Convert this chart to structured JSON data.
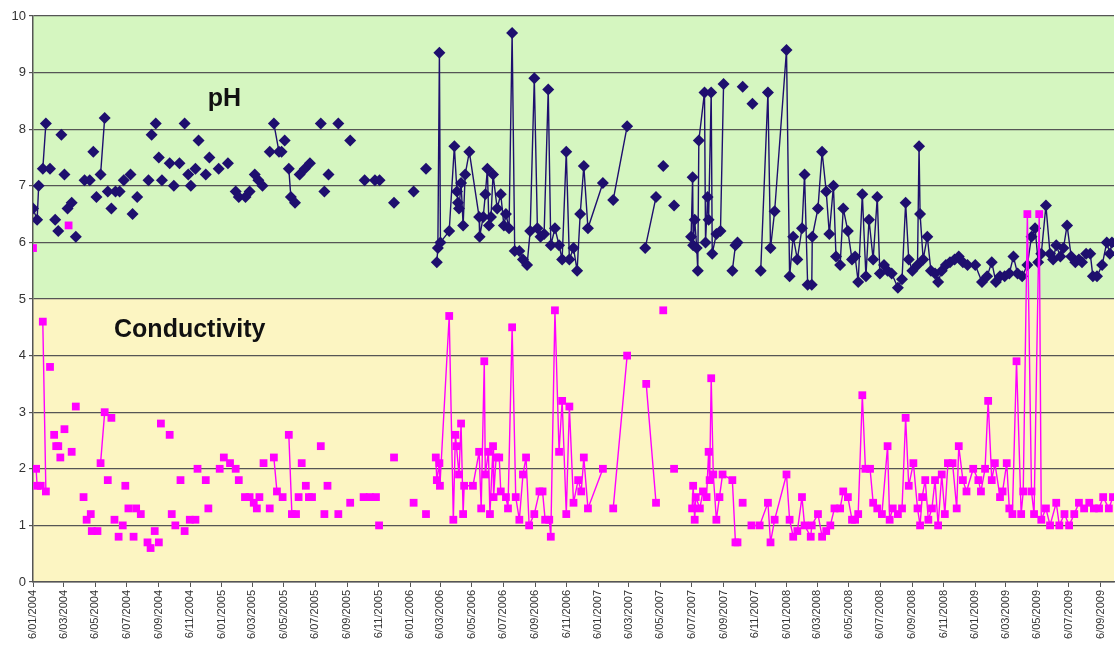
{
  "chart_data": {
    "type": "line",
    "xlim": [
      "2004-01-06",
      "2009-10-02"
    ],
    "xticks": [
      {
        "value": "2004-01-06",
        "label": "6/01/2004"
      },
      {
        "value": "2004-03-06",
        "label": "6/03/2004"
      },
      {
        "value": "2004-05-06",
        "label": "6/05/2004"
      },
      {
        "value": "2004-07-06",
        "label": "6/07/2004"
      },
      {
        "value": "2004-09-06",
        "label": "6/09/2004"
      },
      {
        "value": "2004-11-06",
        "label": "6/11/2004"
      },
      {
        "value": "2005-01-06",
        "label": "6/01/2005"
      },
      {
        "value": "2005-03-06",
        "label": "6/03/2005"
      },
      {
        "value": "2005-05-06",
        "label": "6/05/2005"
      },
      {
        "value": "2005-07-06",
        "label": "6/07/2005"
      },
      {
        "value": "2005-09-06",
        "label": "6/09/2005"
      },
      {
        "value": "2005-11-06",
        "label": "6/11/2005"
      },
      {
        "value": "2006-01-06",
        "label": "6/01/2006"
      },
      {
        "value": "2006-03-06",
        "label": "6/03/2006"
      },
      {
        "value": "2006-05-06",
        "label": "6/05/2006"
      },
      {
        "value": "2006-07-06",
        "label": "6/07/2006"
      },
      {
        "value": "2006-09-06",
        "label": "6/09/2006"
      },
      {
        "value": "2006-11-06",
        "label": "6/11/2006"
      },
      {
        "value": "2007-01-06",
        "label": "6/01/2007"
      },
      {
        "value": "2007-03-06",
        "label": "6/03/2007"
      },
      {
        "value": "2007-05-06",
        "label": "6/05/2007"
      },
      {
        "value": "2007-07-06",
        "label": "6/07/2007"
      },
      {
        "value": "2007-09-06",
        "label": "6/09/2007"
      },
      {
        "value": "2007-11-06",
        "label": "6/11/2007"
      },
      {
        "value": "2008-01-06",
        "label": "6/01/2008"
      },
      {
        "value": "2008-03-06",
        "label": "6/03/2008"
      },
      {
        "value": "2008-05-06",
        "label": "6/05/2008"
      },
      {
        "value": "2008-07-06",
        "label": "6/07/2008"
      },
      {
        "value": "2008-09-06",
        "label": "6/09/2008"
      },
      {
        "value": "2008-11-06",
        "label": "6/11/2008"
      },
      {
        "value": "2009-01-06",
        "label": "6/01/2009"
      },
      {
        "value": "2009-03-06",
        "label": "6/03/2009"
      },
      {
        "value": "2009-05-06",
        "label": "6/05/2009"
      },
      {
        "value": "2009-07-06",
        "label": "6/07/2009"
      },
      {
        "value": "2009-09-06",
        "label": "6/09/2009"
      }
    ],
    "ylim": [
      0,
      10
    ],
    "yticks": [
      0,
      1,
      2,
      3,
      4,
      5,
      6,
      7,
      8,
      9,
      10
    ],
    "grid": "y",
    "line_style": "solid",
    "bands": [
      {
        "axis": "y",
        "from": 5,
        "to": 10,
        "color": "#d5f6c0"
      },
      {
        "axis": "y",
        "from": 0,
        "to": 5,
        "color": "#fcf5c2"
      }
    ],
    "series": [
      {
        "name": "pH",
        "color": "#1e0f6e",
        "marker": "diamond",
        "x": [
          "2004-01-06",
          "2004-01-14",
          "2004-01-17",
          null,
          "2004-01-25",
          "2004-01-31",
          null,
          "2004-02-08",
          null,
          "2004-02-18",
          null,
          "2004-02-24",
          null,
          "2004-03-01",
          null,
          "2004-03-07",
          null,
          "2004-03-13",
          null,
          "2004-03-21",
          null,
          "2004-03-29",
          null,
          "2004-04-15",
          null,
          "2004-04-25",
          null,
          "2004-05-02",
          null,
          "2004-05-08",
          null,
          "2004-05-16",
          "2004-05-24",
          null,
          "2004-05-30",
          null,
          "2004-06-06",
          null,
          "2004-06-14",
          null,
          "2004-06-22",
          null,
          "2004-06-30",
          null,
          "2004-07-13",
          null,
          "2004-07-17",
          null,
          "2004-07-26",
          null,
          "2004-08-17",
          null,
          "2004-08-23",
          null,
          "2004-08-31",
          null,
          "2004-09-06",
          null,
          "2004-09-12",
          null,
          "2004-09-27",
          null,
          "2004-10-05",
          null,
          "2004-10-16",
          null,
          "2004-10-26",
          null,
          "2004-11-02",
          null,
          "2004-11-07",
          null,
          "2004-11-16",
          null,
          "2004-11-22",
          null,
          "2004-12-06",
          null,
          "2004-12-13",
          null,
          "2004-12-31",
          null,
          "2005-01-18",
          null,
          "2005-02-02",
          null,
          "2005-02-08",
          null,
          "2005-02-21",
          null,
          "2005-03-01",
          null,
          "2005-03-11",
          null,
          "2005-03-18",
          null,
          "2005-03-26",
          null,
          "2005-04-09",
          null,
          "2005-04-17",
          "2005-04-27",
          null,
          "2005-05-02",
          null,
          "2005-05-08",
          null,
          "2005-05-16",
          "2005-05-20",
          "2005-05-28",
          null,
          "2005-06-06",
          null,
          "2005-06-16",
          null,
          "2005-06-26",
          null,
          "2005-07-17",
          null,
          "2005-07-24",
          null,
          "2005-08-01",
          null,
          "2005-08-20",
          null,
          "2005-09-12",
          null,
          "2005-10-10",
          null,
          "2005-10-30",
          null,
          "2005-11-08",
          null,
          "2005-12-06",
          null,
          "2006-01-13",
          null,
          "2006-02-06",
          null,
          "2006-02-27",
          "2006-03-01",
          "2006-03-04",
          "2006-03-06",
          "2006-03-23",
          "2006-04-02",
          "2006-04-07",
          "2006-04-09",
          "2006-04-11",
          "2006-04-15",
          "2006-04-19",
          "2006-04-23",
          "2006-05-01",
          "2006-05-20",
          "2006-05-21",
          "2006-05-28",
          "2006-06-01",
          "2006-06-05",
          "2006-06-08",
          "2006-06-12",
          "2006-06-16",
          "2006-06-24",
          "2006-07-01",
          "2006-07-07",
          "2006-07-11",
          "2006-07-17",
          "2006-07-23",
          "2006-07-28",
          "2006-08-06",
          "2006-08-13",
          "2006-08-21",
          "2006-08-27",
          "2006-09-04",
          "2006-09-10",
          "2006-09-16",
          "2006-09-23",
          "2006-10-01",
          "2006-10-06",
          "2006-10-14",
          "2006-10-22",
          "2006-10-28",
          "2006-11-05",
          "2006-11-11",
          "2006-11-19",
          "2006-11-26",
          "2006-12-02",
          "2006-12-09",
          "2006-12-17",
          "2007-01-15",
          null,
          "2007-02-04",
          "2007-03-03",
          null,
          "2007-04-07",
          "2007-04-28",
          null,
          "2007-05-12",
          null,
          "2007-06-02",
          null,
          "2007-07-05",
          "2007-07-08",
          "2007-07-09",
          "2007-07-12",
          "2007-07-16",
          "2007-07-18",
          "2007-07-20",
          "2007-07-31",
          "2007-08-02",
          "2007-08-06",
          "2007-08-08",
          "2007-08-13",
          "2007-08-15",
          "2007-08-23",
          "2007-08-31",
          "2007-09-06",
          null,
          "2007-09-23",
          "2007-09-29",
          "2007-10-03",
          null,
          "2007-10-13",
          null,
          "2007-11-01",
          null,
          "2007-11-17",
          "2007-12-01",
          "2007-12-06",
          "2007-12-14",
          "2008-01-06",
          "2008-01-12",
          "2008-01-19",
          "2008-01-27",
          "2008-02-05",
          "2008-02-10",
          "2008-02-16",
          "2008-02-24",
          "2008-02-25",
          "2008-03-07",
          "2008-03-15",
          "2008-03-23",
          "2008-03-29",
          "2008-04-06",
          "2008-04-11",
          "2008-04-19",
          "2008-04-25",
          "2008-05-04",
          "2008-05-12",
          "2008-05-18",
          "2008-05-24",
          "2008-06-01",
          "2008-06-08",
          "2008-06-14",
          "2008-06-22",
          "2008-06-30",
          "2008-07-05",
          "2008-07-13",
          "2008-07-20",
          "2008-07-28",
          "2008-08-09",
          "2008-08-17",
          "2008-08-24",
          "2008-08-30",
          "2008-09-06",
          "2008-09-16",
          "2008-09-19",
          "2008-09-21",
          "2008-09-27",
          "2008-10-05",
          "2008-10-12",
          "2008-10-20",
          "2008-10-26",
          "2008-11-02",
          "2008-11-10",
          "2008-11-18",
          "2008-11-27",
          "2008-12-05",
          "2008-12-13",
          "2008-12-22",
          "2009-01-06",
          "2009-01-19",
          "2009-01-29",
          "2009-02-07",
          "2009-02-15",
          "2009-02-23",
          "2009-03-04",
          "2009-03-13",
          "2009-03-21",
          "2009-03-29",
          "2009-04-07",
          "2009-04-17",
          "2009-04-25",
          "2009-05-02",
          "2009-05-08",
          "2009-05-14",
          "2009-05-23",
          "2009-05-31",
          "2009-06-06",
          "2009-06-12",
          "2009-06-20",
          "2009-06-26",
          "2009-07-03",
          "2009-07-11",
          "2009-07-19",
          "2009-07-26",
          "2009-08-01",
          "2009-08-09",
          "2009-08-17",
          "2009-08-22",
          "2009-08-30",
          "2009-09-09",
          "2009-09-18",
          "2009-09-24",
          "2009-09-28"
        ],
        "values": [
          6.6,
          6.4,
          7.0,
          null,
          7.3,
          8.1,
          null,
          7.3,
          null,
          6.4,
          null,
          6.2,
          null,
          7.9,
          null,
          7.2,
          null,
          6.6,
          null,
          6.7,
          null,
          6.1,
          null,
          7.1,
          null,
          7.1,
          null,
          7.6,
          null,
          6.8,
          null,
          7.2,
          8.2,
          null,
          6.9,
          null,
          6.6,
          null,
          6.9,
          null,
          6.9,
          null,
          7.1,
          null,
          7.2,
          null,
          6.5,
          null,
          6.8,
          null,
          7.1,
          null,
          7.9,
          null,
          8.1,
          null,
          7.5,
          null,
          7.1,
          null,
          7.4,
          null,
          7.0,
          null,
          7.4,
          null,
          8.1,
          null,
          7.2,
          null,
          7.0,
          null,
          7.3,
          null,
          7.8,
          null,
          7.2,
          null,
          7.5,
          null,
          7.3,
          null,
          7.4,
          null,
          6.9,
          null,
          6.8,
          null,
          6.8,
          null,
          6.9,
          null,
          7.2,
          null,
          7.1,
          null,
          7.0,
          null,
          7.6,
          null,
          8.1,
          7.6,
          null,
          7.6,
          null,
          7.8,
          null,
          7.3,
          6.8,
          6.7,
          null,
          7.2,
          null,
          7.3,
          null,
          7.4,
          null,
          8.1,
          null,
          6.9,
          null,
          7.2,
          null,
          8.1,
          null,
          7.8,
          null,
          7.1,
          null,
          7.1,
          null,
          7.1,
          null,
          6.7,
          null,
          6.9,
          null,
          7.3,
          null,
          5.65,
          5.9,
          9.35,
          6.0,
          6.2,
          7.7,
          6.9,
          6.7,
          6.6,
          7.05,
          6.3,
          7.2,
          7.6,
          6.45,
          6.1,
          6.45,
          6.85,
          7.3,
          6.3,
          6.45,
          7.2,
          6.6,
          6.85,
          6.3,
          6.5,
          6.25,
          9.7,
          5.85,
          5.85,
          5.7,
          5.6,
          6.2,
          8.9,
          6.25,
          6.1,
          6.15,
          8.7,
          5.95,
          6.25,
          5.95,
          5.7,
          7.6,
          5.7,
          5.9,
          5.5,
          6.5,
          7.35,
          6.25,
          7.05,
          null,
          6.75,
          8.05,
          null,
          5.9,
          6.8,
          null,
          7.35,
          null,
          6.65,
          null,
          6.1,
          7.15,
          5.95,
          6.4,
          5.9,
          5.5,
          7.8,
          8.65,
          6.0,
          6.8,
          6.4,
          8.65,
          5.8,
          6.15,
          6.2,
          8.8,
          null,
          5.5,
          5.95,
          6.0,
          null,
          8.75,
          null,
          8.45,
          null,
          5.5,
          8.65,
          5.9,
          6.55,
          9.4,
          5.4,
          6.1,
          5.7,
          6.25,
          7.2,
          5.25,
          5.25,
          6.1,
          6.6,
          7.6,
          6.9,
          6.15,
          7.0,
          5.75,
          5.6,
          6.6,
          6.2,
          5.7,
          5.75,
          5.3,
          6.85,
          5.4,
          6.4,
          5.7,
          6.8,
          5.45,
          5.6,
          5.5,
          5.45,
          5.2,
          5.35,
          6.7,
          5.7,
          5.5,
          5.6,
          7.7,
          6.5,
          5.7,
          6.1,
          5.5,
          5.45,
          5.3,
          5.5,
          5.6,
          5.65,
          5.7,
          5.75,
          5.65,
          5.6,
          5.6,
          5.3,
          5.4,
          5.65,
          5.3,
          5.4,
          5.4,
          5.45,
          5.75,
          5.45,
          5.4,
          5.6,
          6.1,
          6.25,
          5.65,
          5.8,
          6.65,
          5.8,
          5.7,
          5.95,
          5.75,
          5.9,
          6.3,
          5.75,
          5.65,
          5.7,
          5.65,
          5.8,
          5.8,
          5.4,
          5.4,
          5.6,
          6.0,
          5.8,
          6.0
        ]
      },
      {
        "name": "Conductivity",
        "color": "#ff00ff",
        "marker": "square",
        "x": [
          "2004-01-06",
          null,
          "2004-01-12",
          "2004-01-14",
          null,
          "2004-01-21",
          null,
          "2004-01-25",
          "2004-01-31",
          null,
          "2004-02-08",
          null,
          "2004-02-16",
          null,
          "2004-02-20",
          null,
          "2004-02-24",
          null,
          "2004-02-28",
          null,
          "2004-03-07",
          null,
          "2004-03-15",
          null,
          "2004-03-21",
          null,
          "2004-03-29",
          null,
          "2004-04-13",
          null,
          "2004-04-19",
          null,
          "2004-04-27",
          null,
          "2004-04-29",
          null,
          "2004-05-10",
          null,
          "2004-05-16",
          "2004-05-24",
          null,
          "2004-05-30",
          null,
          "2004-06-06",
          null,
          "2004-06-12",
          null,
          "2004-06-20",
          null,
          "2004-06-28",
          null,
          "2004-07-03",
          null,
          "2004-07-09",
          null,
          "2004-07-19",
          null,
          "2004-07-24",
          null,
          "2004-08-02",
          null,
          "2004-08-15",
          null,
          "2004-08-21",
          null,
          "2004-08-29",
          null,
          "2004-09-06",
          null,
          "2004-09-10",
          null,
          "2004-09-27",
          null,
          "2004-10-01",
          null,
          "2004-10-08",
          null,
          "2004-10-18",
          null,
          "2004-10-26",
          null,
          "2004-11-05",
          null,
          "2004-11-16",
          null,
          "2004-11-20",
          null,
          "2004-12-06",
          null,
          "2004-12-11",
          null,
          "2005-01-02",
          null,
          "2005-01-10",
          null,
          "2005-01-22",
          null,
          "2005-02-02",
          null,
          "2005-02-08",
          null,
          "2005-02-20",
          null,
          "2005-03-01",
          null,
          "2005-03-09",
          null,
          "2005-03-15",
          null,
          "2005-03-20",
          null,
          "2005-03-28",
          null,
          "2005-04-09",
          null,
          "2005-04-17",
          "2005-04-23",
          null,
          "2005-05-04",
          null,
          "2005-05-16",
          "2005-05-22",
          null,
          "2005-05-30",
          null,
          "2005-06-04",
          null,
          "2005-06-10",
          null,
          "2005-06-18",
          null,
          "2005-06-24",
          null,
          "2005-06-30",
          null,
          "2005-07-17",
          null,
          "2005-07-24",
          null,
          "2005-07-30",
          null,
          "2005-08-20",
          null,
          "2005-09-12",
          null,
          "2005-10-08",
          null,
          "2005-10-20",
          null,
          "2005-11-01",
          null,
          "2005-11-07",
          null,
          "2005-12-06",
          null,
          "2006-01-13",
          null,
          "2006-02-06",
          null,
          "2006-02-25",
          "2006-02-27",
          "2006-03-04",
          "2006-03-05",
          "2006-03-23",
          "2006-03-31",
          "2006-04-04",
          "2006-04-06",
          "2006-04-11",
          "2006-04-15",
          "2006-04-19",
          "2006-04-21",
          "2006-05-08",
          "2006-05-20",
          "2006-05-24",
          "2006-05-30",
          "2006-06-01",
          "2006-06-07",
          "2006-06-10",
          "2006-06-16",
          "2006-06-17",
          "2006-06-22",
          "2006-06-28",
          "2006-07-01",
          "2006-07-11",
          "2006-07-15",
          "2006-07-23",
          "2006-07-30",
          "2006-08-06",
          "2006-08-13",
          "2006-08-19",
          "2006-08-25",
          "2006-09-04",
          "2006-09-14",
          "2006-09-20",
          "2006-09-25",
          "2006-10-03",
          "2006-10-06",
          "2006-10-14",
          "2006-10-22",
          "2006-10-28",
          "2006-11-05",
          "2006-11-11",
          "2006-11-19",
          "2006-11-28",
          "2006-12-04",
          "2006-12-09",
          "2006-12-17",
          "2007-01-15",
          null,
          "2007-02-04",
          "2007-03-03",
          null,
          "2007-04-09",
          "2007-04-28",
          null,
          "2007-05-12",
          null,
          "2007-06-02",
          null,
          "2007-07-07",
          "2007-07-09",
          "2007-07-12",
          "2007-07-14",
          "2007-07-22",
          "2007-07-28",
          "2007-08-04",
          "2007-08-08",
          "2007-08-10",
          "2007-08-13",
          "2007-08-17",
          "2007-08-23",
          "2007-08-29",
          "2007-09-04",
          "2007-09-23",
          "2007-09-29",
          "2007-10-03",
          null,
          "2007-10-13",
          null,
          "2007-10-30",
          "2007-11-15",
          "2007-12-01",
          "2007-12-06",
          "2007-12-14",
          "2008-01-06",
          "2008-01-12",
          "2008-01-19",
          "2008-01-27",
          "2008-02-05",
          "2008-02-10",
          "2008-02-22",
          "2008-02-24",
          "2008-03-07",
          "2008-03-15",
          "2008-03-23",
          "2008-03-31",
          "2008-04-08",
          "2008-04-19",
          "2008-04-25",
          "2008-05-04",
          "2008-05-12",
          "2008-05-18",
          "2008-05-24",
          "2008-06-01",
          "2008-06-07",
          "2008-06-16",
          "2008-06-22",
          "2008-06-30",
          "2008-07-09",
          "2008-07-20",
          "2008-07-24",
          "2008-07-30",
          "2008-08-09",
          "2008-08-17",
          "2008-08-24",
          "2008-08-30",
          "2008-09-08",
          "2008-09-16",
          "2008-09-21",
          "2008-09-25",
          "2008-10-01",
          "2008-10-07",
          "2008-10-14",
          "2008-10-20",
          "2008-10-26",
          "2008-11-02",
          "2008-11-08",
          "2008-11-14",
          "2008-11-23",
          "2008-12-01",
          "2008-12-05",
          "2008-12-13",
          "2008-12-20",
          "2009-01-02",
          "2009-01-12",
          "2009-01-17",
          "2009-01-25",
          "2009-01-31",
          "2009-02-07",
          "2009-02-13",
          "2009-02-23",
          "2009-02-28",
          "2009-03-08",
          "2009-03-13",
          "2009-03-19",
          "2009-03-27",
          "2009-04-05",
          "2009-04-09",
          "2009-04-17",
          "2009-04-25",
          "2009-04-30",
          "2009-05-10",
          "2009-05-14",
          "2009-05-23",
          "2009-05-31",
          "2009-06-12",
          "2009-06-18",
          "2009-06-28",
          "2009-07-07",
          "2009-07-17",
          "2009-07-26",
          "2009-08-05",
          "2009-08-15",
          "2009-08-24",
          "2009-09-03",
          "2009-09-11",
          "2009-09-22",
          "2009-09-30"
        ],
        "values": [
          5.9,
          null,
          2.0,
          1.7,
          null,
          1.7,
          null,
          4.6,
          1.6,
          null,
          3.8,
          null,
          2.6,
          null,
          2.4,
          null,
          2.4,
          null,
          2.2,
          null,
          2.7,
          null,
          6.3,
          null,
          2.3,
          null,
          3.1,
          null,
          1.5,
          null,
          1.1,
          null,
          1.2,
          null,
          0.9,
          null,
          0.9,
          null,
          2.1,
          3.0,
          null,
          1.8,
          null,
          2.9,
          null,
          1.1,
          null,
          0.8,
          null,
          1.0,
          null,
          1.7,
          null,
          1.3,
          null,
          0.8,
          null,
          1.3,
          null,
          1.2,
          null,
          0.7,
          null,
          0.6,
          null,
          0.9,
          null,
          0.7,
          null,
          2.8,
          null,
          2.6,
          null,
          1.2,
          null,
          1.0,
          null,
          1.8,
          null,
          0.9,
          null,
          1.1,
          null,
          1.1,
          null,
          2.0,
          null,
          1.8,
          null,
          1.3,
          null,
          2.0,
          null,
          2.2,
          null,
          2.1,
          null,
          2.0,
          null,
          1.8,
          null,
          1.5,
          null,
          1.5,
          null,
          1.4,
          null,
          1.3,
          null,
          1.5,
          null,
          2.1,
          null,
          1.3,
          null,
          2.2,
          1.6,
          null,
          1.5,
          null,
          2.6,
          1.2,
          null,
          1.2,
          null,
          1.5,
          null,
          2.1,
          null,
          1.7,
          null,
          1.5,
          null,
          1.5,
          null,
          2.4,
          null,
          1.2,
          null,
          1.7,
          null,
          1.2,
          null,
          1.4,
          null,
          1.5,
          null,
          1.5,
          null,
          1.5,
          null,
          1.0,
          null,
          2.2,
          null,
          1.4,
          null,
          1.2,
          null,
          2.2,
          1.8,
          2.1,
          1.7,
          4.7,
          1.1,
          2.6,
          2.4,
          1.9,
          2.8,
          1.2,
          1.7,
          1.7,
          2.3,
          1.3,
          3.9,
          1.9,
          2.3,
          1.2,
          2.4,
          1.5,
          2.2,
          2.2,
          1.6,
          1.5,
          1.3,
          4.5,
          1.5,
          1.1,
          1.9,
          2.2,
          1.0,
          1.2,
          1.6,
          1.6,
          1.1,
          1.1,
          0.8,
          4.8,
          2.3,
          3.2,
          1.2,
          3.1,
          1.4,
          1.8,
          1.6,
          2.2,
          1.3,
          2.0,
          null,
          1.3,
          4.0,
          null,
          3.5,
          1.4,
          null,
          4.8,
          null,
          2.0,
          null,
          1.3,
          1.7,
          1.1,
          1.5,
          1.3,
          1.6,
          1.5,
          2.3,
          1.8,
          3.6,
          1.9,
          1.1,
          1.5,
          1.9,
          1.8,
          0.7,
          0.7,
          null,
          1.4,
          null,
          1.0,
          1.0,
          1.4,
          0.7,
          1.1,
          1.9,
          1.1,
          0.8,
          0.9,
          1.5,
          1.0,
          0.8,
          1.0,
          1.2,
          0.8,
          0.9,
          1.0,
          1.3,
          1.3,
          1.6,
          1.5,
          1.1,
          1.1,
          1.2,
          3.3,
          2.0,
          2.0,
          1.4,
          1.3,
          1.2,
          2.4,
          1.1,
          1.3,
          1.2,
          1.3,
          2.9,
          1.7,
          2.1,
          1.3,
          1.0,
          1.5,
          1.8,
          1.1,
          1.3,
          1.8,
          1.0,
          1.9,
          1.2,
          2.1,
          2.1,
          1.3,
          2.4,
          1.8,
          1.6,
          2.0,
          1.8,
          1.6,
          2.0,
          3.2,
          1.8,
          2.1,
          1.5,
          1.6,
          2.1,
          1.3,
          1.2,
          3.9,
          1.2,
          1.6,
          6.5,
          1.6,
          1.2,
          6.5,
          1.1,
          1.3,
          1.0,
          1.4,
          1.0,
          1.2,
          1.0,
          1.2,
          1.4,
          1.3,
          1.4,
          1.3,
          1.3,
          1.5,
          1.3,
          1.5
        ]
      }
    ]
  }
}
